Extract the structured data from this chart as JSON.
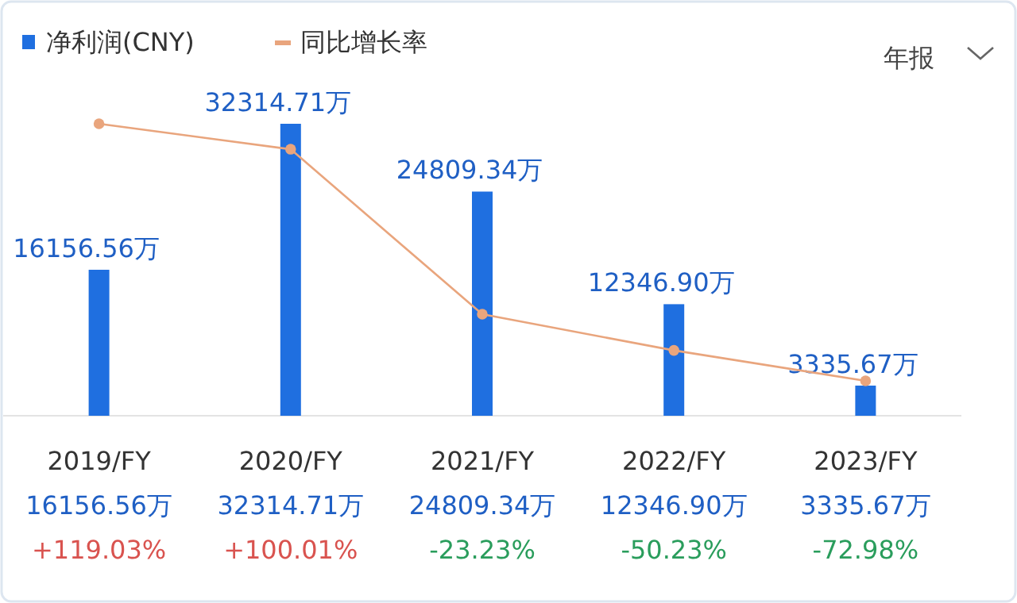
{
  "chart_data": {
    "type": "bar",
    "categories": [
      "2019/FY",
      "2020/FY",
      "2021/FY",
      "2022/FY",
      "2023/FY"
    ],
    "series": [
      {
        "name": "净利润(CNY)",
        "color": "#1f6fe0",
        "values": [
          16156.56,
          32314.71,
          24809.34,
          12346.9,
          3335.67
        ],
        "value_labels": [
          "16156.56万",
          "32314.71万",
          "24809.34万",
          "12346.90万",
          "3335.67万"
        ]
      },
      {
        "name": "同比增长率",
        "type": "line",
        "axis": "y2",
        "color": "#e9a57d",
        "values": [
          119.03,
          100.01,
          -23.23,
          -50.23,
          -72.98
        ],
        "value_labels": [
          "+119.03%",
          "+100.01%",
          "-23.23%",
          "-50.23%",
          "-72.98%"
        ]
      }
    ],
    "marker": "circle",
    "legend": "top left",
    "grid": false,
    "annotations": [
      "年报"
    ]
  }
}
